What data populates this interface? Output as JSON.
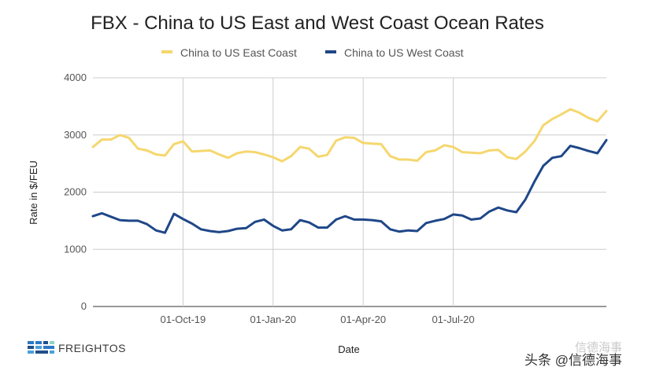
{
  "chart_data": {
    "type": "line",
    "title": "FBX - China to US East and West Coast Ocean Rates",
    "xlabel": "Date",
    "ylabel": "Rate in $/FEU",
    "ylim": [
      0,
      4000
    ],
    "yticks": [
      0,
      1000,
      2000,
      3000,
      4000
    ],
    "x_tick_labels": [
      "01-Oct-19",
      "01-Jan-20",
      "01-Apr-20",
      "01-Jul-20"
    ],
    "x_tick_index": [
      10,
      20,
      30,
      40
    ],
    "grid": true,
    "legend_position": "top",
    "series": [
      {
        "name": "China to US East Coast",
        "color": "#f5d76e",
        "values": [
          2790,
          2920,
          2920,
          3000,
          2950,
          2760,
          2730,
          2660,
          2640,
          2840,
          2890,
          2710,
          2720,
          2730,
          2660,
          2600,
          2680,
          2710,
          2700,
          2660,
          2610,
          2540,
          2630,
          2790,
          2760,
          2620,
          2650,
          2900,
          2960,
          2950,
          2860,
          2850,
          2840,
          2630,
          2570,
          2570,
          2550,
          2700,
          2730,
          2820,
          2790,
          2700,
          2690,
          2680,
          2730,
          2740,
          2610,
          2580,
          2710,
          2890,
          3170,
          3280,
          3360,
          3450,
          3390,
          3300,
          3240,
          3420
        ]
      },
      {
        "name": "China to US West Coast",
        "color": "#1f4788",
        "values": [
          1580,
          1630,
          1570,
          1510,
          1500,
          1500,
          1440,
          1330,
          1290,
          1620,
          1530,
          1450,
          1350,
          1320,
          1300,
          1320,
          1360,
          1370,
          1480,
          1520,
          1410,
          1330,
          1350,
          1510,
          1470,
          1380,
          1380,
          1520,
          1580,
          1520,
          1520,
          1510,
          1490,
          1350,
          1310,
          1330,
          1320,
          1460,
          1500,
          1530,
          1610,
          1590,
          1520,
          1540,
          1660,
          1730,
          1680,
          1650,
          1870,
          2180,
          2460,
          2600,
          2630,
          2810,
          2770,
          2720,
          2680,
          2910
        ]
      }
    ]
  },
  "branding": {
    "logo_text": "FREIGHTOS",
    "watermark_text": "头条 @信德海事",
    "watermark_ghost": "信德海事"
  }
}
